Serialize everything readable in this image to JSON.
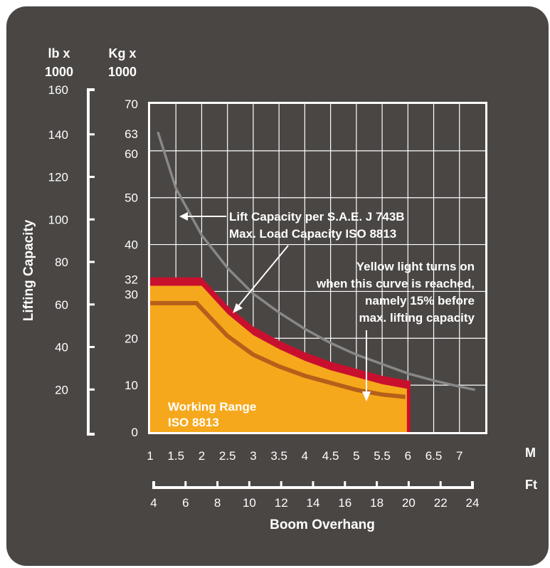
{
  "chart_data": {
    "type": "area",
    "xlabel": "Boom Overhang",
    "ylabel": "Lifting Capacity",
    "x_unit_top": "M",
    "x_unit_bottom": "Ft",
    "x_ticks_m": [
      1,
      1.5,
      2,
      2.5,
      3,
      3.5,
      4,
      4.5,
      5,
      5.5,
      6,
      6.5,
      7
    ],
    "x_ticks_ft": [
      4,
      6,
      8,
      10,
      12,
      14,
      16,
      18,
      20,
      22,
      24
    ],
    "xlim_m": [
      1,
      7.5
    ],
    "ylim_kg_x1000": [
      0,
      70
    ],
    "y_unit_kg": [
      "Kg x",
      "1000"
    ],
    "y_unit_lb": [
      "lb x",
      "1000"
    ],
    "y_ticks_kg": [
      0,
      10,
      20,
      30,
      32,
      40,
      50,
      60,
      63,
      70
    ],
    "y_ticks_lb": [
      20,
      40,
      60,
      80,
      100,
      120,
      140,
      160
    ],
    "series": [
      {
        "name": "Lift Capacity per S.A.E. J 743B",
        "color": "#888888",
        "x": [
          1.15,
          1.5,
          2,
          2.5,
          3,
          3.5,
          4,
          4.5,
          5,
          5.5,
          6,
          6.5,
          7,
          7.3
        ],
        "y": [
          64,
          52,
          42,
          35,
          29.5,
          25.5,
          22,
          19,
          16.5,
          14.5,
          12.5,
          11,
          9.7,
          9
        ]
      },
      {
        "name": "Max. Load Capacity ISO 8813",
        "color": "#c8102e",
        "x": [
          1,
          1.5,
          2,
          2.5,
          3,
          3.5,
          4,
          4.5,
          5,
          5.5,
          6,
          6.05
        ],
        "y": [
          33,
          33,
          33,
          27,
          22.5,
          19.5,
          17,
          15,
          13.5,
          12,
          11,
          11
        ]
      },
      {
        "name": "Yellow light curve",
        "color": "#b5601a",
        "x": [
          1,
          1.5,
          1.9,
          2.5,
          3,
          3.5,
          4,
          4.5,
          5,
          5.5,
          5.95
        ],
        "y": [
          27.5,
          27.5,
          27.5,
          20.5,
          16.5,
          14,
          12,
          10.5,
          9,
          8,
          7.5
        ]
      }
    ],
    "annotations": [
      {
        "lines": [
          "Lift Capacity per S.A.E. J 743B",
          "Max. Load Capacity ISO 8813"
        ]
      },
      {
        "lines": [
          "Yellow light turns on",
          "when this curve is reached,",
          "namely 15% before",
          "max. lifting capacity"
        ]
      },
      {
        "lines": [
          "Working Range",
          "ISO 8813"
        ]
      }
    ],
    "colors": {
      "card": "#4a4644",
      "plot": "#ffffff",
      "fill": "#f6a81c",
      "red": "#c8102e",
      "orange": "#b5601a",
      "grey": "#888888"
    },
    "grid": true
  }
}
